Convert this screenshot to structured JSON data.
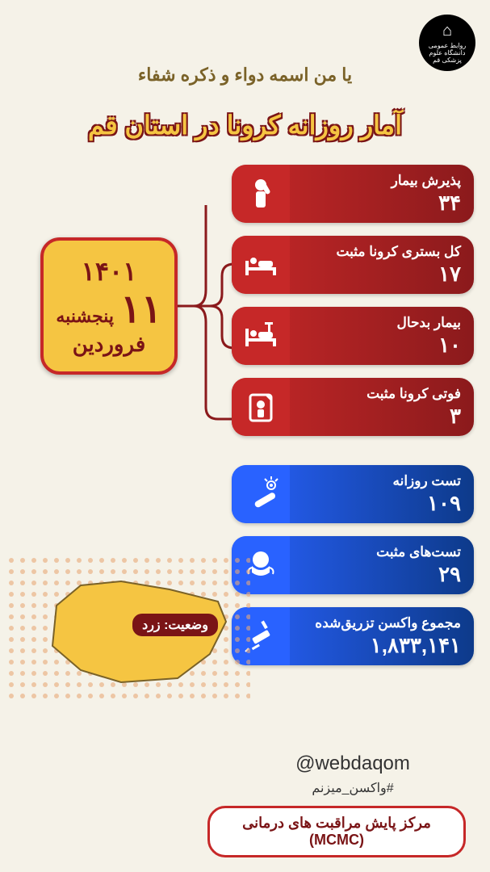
{
  "logo": {
    "line1": "روابط عمومی",
    "line2": "دانشگاه علوم پزشکی قم"
  },
  "decorative_title": "یا من اسمه دواء و ذکره شفاء",
  "main_title": "آمار روزانه کرونا در استان قم",
  "date": {
    "year": "۱۴۰۱",
    "day_of_week": "پنجشنبه",
    "day": "۱۱",
    "month": "فروردین"
  },
  "red_stats": [
    {
      "label": "پذیرش بیمار",
      "value": "۳۴",
      "icon": "patient-salute"
    },
    {
      "label": "کل بستری کرونا مثبت",
      "value": "۱۷",
      "icon": "hospital-bed"
    },
    {
      "label": "بیمار بدحال",
      "value": "۱۰",
      "icon": "icu-bed"
    },
    {
      "label": "فوتی کرونا مثبت",
      "value": "۳",
      "icon": "death"
    }
  ],
  "blue_stats": [
    {
      "label": "تست روزانه",
      "value": "۱۰۹",
      "icon": "thermometer"
    },
    {
      "label": "تست‌های مثبت",
      "value": "۲۹",
      "icon": "mask"
    },
    {
      "label": "مجموع واکسن تزریق‌شده",
      "value": "۱,۸۳۳,۱۴۱",
      "icon": "syringe"
    }
  ],
  "status": {
    "label": "وضعیت:",
    "value": "زرد",
    "color": "#f5c542"
  },
  "footer": {
    "handle": "@webdaqom",
    "hashtag": "#واکسن_میزنم",
    "org": "مرکز پایش مراقبت های درمانی (MCMC)"
  },
  "colors": {
    "bg": "#f5f2e8",
    "red_dark": "#8b1a1c",
    "red": "#c62828",
    "blue_dark": "#0d3a8a",
    "blue": "#2962ff",
    "yellow": "#f5c542",
    "gold": "#7a6228",
    "dot": "#e8a877"
  }
}
